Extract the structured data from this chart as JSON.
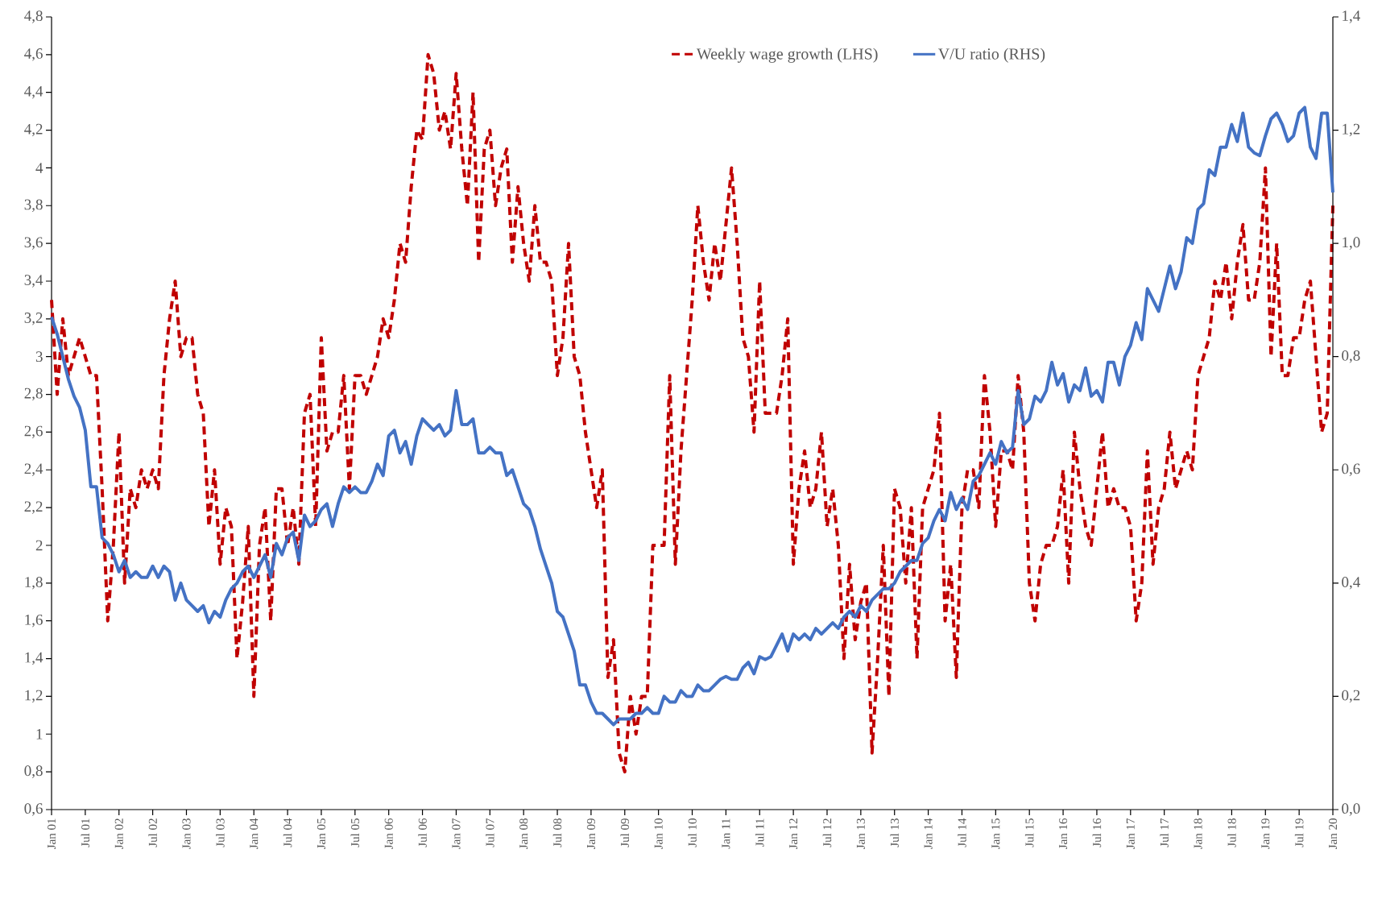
{
  "chart_data": {
    "type": "line",
    "x": [
      "2001-01",
      "2001-02",
      "2001-03",
      "2001-04",
      "2001-05",
      "2001-06",
      "2001-07",
      "2001-08",
      "2001-09",
      "2001-10",
      "2001-11",
      "2001-12",
      "2002-01",
      "2002-02",
      "2002-03",
      "2002-04",
      "2002-05",
      "2002-06",
      "2002-07",
      "2002-08",
      "2002-09",
      "2002-10",
      "2002-11",
      "2002-12",
      "2003-01",
      "2003-02",
      "2003-03",
      "2003-04",
      "2003-05",
      "2003-06",
      "2003-07",
      "2003-08",
      "2003-09",
      "2003-10",
      "2003-11",
      "2003-12",
      "2004-01",
      "2004-02",
      "2004-03",
      "2004-04",
      "2004-05",
      "2004-06",
      "2004-07",
      "2004-08",
      "2004-09",
      "2004-10",
      "2004-11",
      "2004-12",
      "2005-01",
      "2005-02",
      "2005-03",
      "2005-04",
      "2005-05",
      "2005-06",
      "2005-07",
      "2005-08",
      "2005-09",
      "2005-10",
      "2005-11",
      "2005-12",
      "2006-01",
      "2006-02",
      "2006-03",
      "2006-04",
      "2006-05",
      "2006-06",
      "2006-07",
      "2006-08",
      "2006-09",
      "2006-10",
      "2006-11",
      "2006-12",
      "2007-01",
      "2007-02",
      "2007-03",
      "2007-04",
      "2007-05",
      "2007-06",
      "2007-07",
      "2007-08",
      "2007-09",
      "2007-10",
      "2007-11",
      "2007-12",
      "2008-01",
      "2008-02",
      "2008-03",
      "2008-04",
      "2008-05",
      "2008-06",
      "2008-07",
      "2008-08",
      "2008-09",
      "2008-10",
      "2008-11",
      "2008-12",
      "2009-01",
      "2009-02",
      "2009-03",
      "2009-04",
      "2009-05",
      "2009-06",
      "2009-07",
      "2009-08",
      "2009-09",
      "2009-10",
      "2009-11",
      "2009-12",
      "2010-01",
      "2010-02",
      "2010-03",
      "2010-04",
      "2010-05",
      "2010-06",
      "2010-07",
      "2010-08",
      "2010-09",
      "2010-10",
      "2010-11",
      "2010-12",
      "2011-01",
      "2011-02",
      "2011-03",
      "2011-04",
      "2011-05",
      "2011-06",
      "2011-07",
      "2011-08",
      "2011-09",
      "2011-10",
      "2011-11",
      "2011-12",
      "2012-01",
      "2012-02",
      "2012-03",
      "2012-04",
      "2012-05",
      "2012-06",
      "2012-07",
      "2012-08",
      "2012-09",
      "2012-10",
      "2012-11",
      "2012-12",
      "2013-01",
      "2013-02",
      "2013-03",
      "2013-04",
      "2013-05",
      "2013-06",
      "2013-07",
      "2013-08",
      "2013-09",
      "2013-10",
      "2013-11",
      "2013-12",
      "2014-01",
      "2014-02",
      "2014-03",
      "2014-04",
      "2014-05",
      "2014-06",
      "2014-07",
      "2014-08",
      "2014-09",
      "2014-10",
      "2014-11",
      "2014-12",
      "2015-01",
      "2015-02",
      "2015-03",
      "2015-04",
      "2015-05",
      "2015-06",
      "2015-07",
      "2015-08",
      "2015-09",
      "2015-10",
      "2015-11",
      "2015-12",
      "2016-01",
      "2016-02",
      "2016-03",
      "2016-04",
      "2016-05",
      "2016-06",
      "2016-07",
      "2016-08",
      "2016-09",
      "2016-10",
      "2016-11",
      "2016-12",
      "2017-01",
      "2017-02",
      "2017-03",
      "2017-04",
      "2017-05",
      "2017-06",
      "2017-07",
      "2017-08",
      "2017-09",
      "2017-10",
      "2017-11",
      "2017-12",
      "2018-01",
      "2018-02",
      "2018-03",
      "2018-04",
      "2018-05",
      "2018-06",
      "2018-07",
      "2018-08",
      "2018-09",
      "2018-10",
      "2018-11",
      "2018-12",
      "2019-01",
      "2019-02",
      "2019-03",
      "2019-04",
      "2019-05",
      "2019-06",
      "2019-07",
      "2019-08",
      "2019-09",
      "2019-10",
      "2019-11",
      "2019-12",
      "2020-01"
    ],
    "series": [
      {
        "name": "Weekly wage growth (LHS)",
        "color": "#c00000",
        "line_style": "dashed",
        "values": [
          3.3,
          2.8,
          3.2,
          2.9,
          3.0,
          3.1,
          3.0,
          2.9,
          2.9,
          2.3,
          1.6,
          2.0,
          2.6,
          1.8,
          2.3,
          2.2,
          2.4,
          2.3,
          2.4,
          2.3,
          2.9,
          3.2,
          3.4,
          3.0,
          3.1,
          3.1,
          2.8,
          2.7,
          2.1,
          2.4,
          1.9,
          2.2,
          2.1,
          1.4,
          1.7,
          2.1,
          1.2,
          2.0,
          2.2,
          1.6,
          2.3,
          2.3,
          2.0,
          2.2,
          1.9,
          2.7,
          2.8,
          2.1,
          3.1,
          2.5,
          2.6,
          2.6,
          2.9,
          2.3,
          2.9,
          2.9,
          2.8,
          2.9,
          3.0,
          3.2,
          3.1,
          3.3,
          3.6,
          3.5,
          3.9,
          4.2,
          4.15,
          4.6,
          4.5,
          4.2,
          4.3,
          4.1,
          4.5,
          4.1,
          3.8,
          4.4,
          3.5,
          4.1,
          4.2,
          3.8,
          4.0,
          4.1,
          3.5,
          3.9,
          3.6,
          3.4,
          3.8,
          3.5,
          3.5,
          3.4,
          2.9,
          3.1,
          3.6,
          3.0,
          2.9,
          2.6,
          2.4,
          2.2,
          2.4,
          1.3,
          1.5,
          0.9,
          0.8,
          1.2,
          1.0,
          1.2,
          1.2,
          2.0,
          2.0,
          2.0,
          2.9,
          1.9,
          2.5,
          2.9,
          3.3,
          3.8,
          3.5,
          3.3,
          3.6,
          3.4,
          3.7,
          4.0,
          3.6,
          3.1,
          3.0,
          2.6,
          3.4,
          2.7,
          2.7,
          2.7,
          2.9,
          3.2,
          1.9,
          2.3,
          2.5,
          2.2,
          2.3,
          2.6,
          2.1,
          2.3,
          2.0,
          1.4,
          1.9,
          1.5,
          1.7,
          1.8,
          0.9,
          1.4,
          2.0,
          1.2,
          2.3,
          2.2,
          1.8,
          2.2,
          1.4,
          2.2,
          2.3,
          2.4,
          2.7,
          1.6,
          1.9,
          1.3,
          2.2,
          2.4,
          2.4,
          2.2,
          2.9,
          2.6,
          2.1,
          2.5,
          2.5,
          2.4,
          2.9,
          2.6,
          1.8,
          1.6,
          1.9,
          2.0,
          2.0,
          2.1,
          2.4,
          1.8,
          2.6,
          2.3,
          2.1,
          2.0,
          2.3,
          2.6,
          2.2,
          2.3,
          2.2,
          2.2,
          2.1,
          1.6,
          1.8,
          2.5,
          1.9,
          2.2,
          2.3,
          2.6,
          2.3,
          2.4,
          2.5,
          2.4,
          2.9,
          3.0,
          3.1,
          3.4,
          3.3,
          3.5,
          3.2,
          3.5,
          3.7,
          3.3,
          3.3,
          3.5,
          4.0,
          3.0,
          3.6,
          2.9,
          2.9,
          3.1,
          3.1,
          3.3,
          3.4,
          3.0,
          2.6,
          2.7,
          3.8
        ]
      },
      {
        "name": "V/U ratio (RHS)",
        "color": "#4472c4",
        "line_style": "solid",
        "axis": "y2",
        "values": [
          0.87,
          0.84,
          0.8,
          0.76,
          0.73,
          0.71,
          0.67,
          0.57,
          0.57,
          0.48,
          0.47,
          0.45,
          0.42,
          0.44,
          0.41,
          0.42,
          0.41,
          0.41,
          0.43,
          0.41,
          0.43,
          0.42,
          0.37,
          0.4,
          0.37,
          0.36,
          0.35,
          0.36,
          0.33,
          0.35,
          0.34,
          0.37,
          0.39,
          0.4,
          0.42,
          0.43,
          0.41,
          0.43,
          0.45,
          0.41,
          0.47,
          0.45,
          0.48,
          0.49,
          0.44,
          0.52,
          0.5,
          0.51,
          0.53,
          0.54,
          0.5,
          0.54,
          0.57,
          0.56,
          0.57,
          0.56,
          0.56,
          0.58,
          0.61,
          0.59,
          0.66,
          0.67,
          0.63,
          0.65,
          0.61,
          0.66,
          0.69,
          0.68,
          0.67,
          0.68,
          0.66,
          0.67,
          0.74,
          0.68,
          0.68,
          0.69,
          0.63,
          0.63,
          0.64,
          0.63,
          0.63,
          0.59,
          0.6,
          0.57,
          0.54,
          0.53,
          0.5,
          0.46,
          0.43,
          0.4,
          0.35,
          0.34,
          0.31,
          0.28,
          0.22,
          0.22,
          0.19,
          0.17,
          0.17,
          0.16,
          0.15,
          0.16,
          0.16,
          0.16,
          0.17,
          0.17,
          0.18,
          0.17,
          0.17,
          0.2,
          0.19,
          0.19,
          0.21,
          0.2,
          0.2,
          0.22,
          0.21,
          0.21,
          0.22,
          0.23,
          0.235,
          0.23,
          0.23,
          0.25,
          0.26,
          0.24,
          0.27,
          0.265,
          0.27,
          0.29,
          0.31,
          0.28,
          0.31,
          0.3,
          0.31,
          0.3,
          0.32,
          0.31,
          0.32,
          0.33,
          0.32,
          0.34,
          0.35,
          0.34,
          0.36,
          0.35,
          0.37,
          0.38,
          0.39,
          0.39,
          0.4,
          0.42,
          0.43,
          0.44,
          0.44,
          0.47,
          0.48,
          0.51,
          0.53,
          0.51,
          0.56,
          0.53,
          0.55,
          0.53,
          0.58,
          0.59,
          0.61,
          0.63,
          0.61,
          0.65,
          0.63,
          0.64,
          0.74,
          0.68,
          0.69,
          0.73,
          0.72,
          0.74,
          0.79,
          0.75,
          0.77,
          0.72,
          0.75,
          0.74,
          0.78,
          0.73,
          0.74,
          0.72,
          0.79,
          0.79,
          0.75,
          0.8,
          0.82,
          0.86,
          0.83,
          0.92,
          0.9,
          0.88,
          0.92,
          0.96,
          0.92,
          0.95,
          1.01,
          1.0,
          1.06,
          1.07,
          1.13,
          1.12,
          1.17,
          1.17,
          1.21,
          1.18,
          1.23,
          1.17,
          1.16,
          1.155,
          1.19,
          1.22,
          1.23,
          1.21,
          1.18,
          1.19,
          1.23,
          1.24,
          1.17,
          1.15,
          1.23,
          1.23,
          1.09
        ]
      }
    ],
    "xlim": [
      "2001-01",
      "2020-01"
    ],
    "xticks": [
      {
        "value": "2001-01",
        "label": "Jan 01"
      },
      {
        "value": "2001-07",
        "label": "Jul 01"
      },
      {
        "value": "2002-01",
        "label": "Jan 02"
      },
      {
        "value": "2002-07",
        "label": "Jul 02"
      },
      {
        "value": "2003-01",
        "label": "Jan 03"
      },
      {
        "value": "2003-07",
        "label": "Jul 03"
      },
      {
        "value": "2004-01",
        "label": "Jan 04"
      },
      {
        "value": "2004-07",
        "label": "Jul 04"
      },
      {
        "value": "2005-01",
        "label": "Jan 05"
      },
      {
        "value": "2005-07",
        "label": "Jul 05"
      },
      {
        "value": "2006-01",
        "label": "Jan 06"
      },
      {
        "value": "2006-07",
        "label": "Jul 06"
      },
      {
        "value": "2007-01",
        "label": "Jan 07"
      },
      {
        "value": "2007-07",
        "label": "Jul 07"
      },
      {
        "value": "2008-01",
        "label": "Jan 08"
      },
      {
        "value": "2008-07",
        "label": "Jul 08"
      },
      {
        "value": "2009-01",
        "label": "Jan 09"
      },
      {
        "value": "2009-07",
        "label": "Jul 09"
      },
      {
        "value": "2010-01",
        "label": "Jan 10"
      },
      {
        "value": "2010-07",
        "label": "Jul 10"
      },
      {
        "value": "2011-01",
        "label": "Jan 11"
      },
      {
        "value": "2011-07",
        "label": "Jul 11"
      },
      {
        "value": "2012-01",
        "label": "Jan 12"
      },
      {
        "value": "2012-07",
        "label": "Jul 12"
      },
      {
        "value": "2013-01",
        "label": "Jan 13"
      },
      {
        "value": "2013-07",
        "label": "Jul 13"
      },
      {
        "value": "2014-01",
        "label": "Jan 14"
      },
      {
        "value": "2014-07",
        "label": "Jul 14"
      },
      {
        "value": "2015-01",
        "label": "Jan 15"
      },
      {
        "value": "2015-07",
        "label": "Jul 15"
      },
      {
        "value": "2016-01",
        "label": "Jan 16"
      },
      {
        "value": "2016-07",
        "label": "Jul 16"
      },
      {
        "value": "2017-01",
        "label": "Jan 17"
      },
      {
        "value": "2017-07",
        "label": "Jul 17"
      },
      {
        "value": "2018-01",
        "label": "Jan 18"
      },
      {
        "value": "2018-07",
        "label": "Jul 18"
      },
      {
        "value": "2019-01",
        "label": "Jan 19"
      },
      {
        "value": "2019-07",
        "label": "Jul 19"
      },
      {
        "value": "2020-01",
        "label": "Jan 20"
      }
    ],
    "ylim": [
      0.6,
      4.8
    ],
    "yticks": [
      {
        "value": 0.6,
        "label": "0,6"
      },
      {
        "value": 0.8,
        "label": "0,8"
      },
      1,
      {
        "value": 1.2,
        "label": "1,2"
      },
      {
        "value": 1.4,
        "label": "1,4"
      },
      {
        "value": 1.6,
        "label": "1,6"
      },
      {
        "value": 1.8,
        "label": "1,8"
      },
      2,
      {
        "value": 2.2,
        "label": "2,2"
      },
      {
        "value": 2.4,
        "label": "2,4"
      },
      {
        "value": 2.6,
        "label": "2,6"
      },
      {
        "value": 2.8,
        "label": "2,8"
      },
      3,
      {
        "value": 3.2,
        "label": "3,2"
      },
      {
        "value": 3.4,
        "label": "3,4"
      },
      {
        "value": 3.6,
        "label": "3,6"
      },
      {
        "value": 3.8,
        "label": "3,8"
      },
      4,
      {
        "value": 4.2,
        "label": "4,2"
      },
      {
        "value": 4.4,
        "label": "4,4"
      },
      {
        "value": 4.6,
        "label": "4,6"
      },
      {
        "value": 4.8,
        "label": "4,8"
      }
    ],
    "y2lim": [
      0,
      1.4
    ],
    "y2ticks": [
      {
        "value": 0,
        "label": "0,0"
      },
      {
        "value": 0.2,
        "label": "0,2"
      },
      {
        "value": 0.4,
        "label": "0,4"
      },
      {
        "value": 0.6,
        "label": "0,6"
      },
      {
        "value": 0.8,
        "label": "0,8"
      },
      {
        "value": 1.0,
        "label": "1,0"
      },
      {
        "value": 1.2,
        "label": "1,2"
      },
      {
        "value": 1.4,
        "label": "1,4"
      }
    ],
    "legend": "top",
    "marker": "none"
  }
}
